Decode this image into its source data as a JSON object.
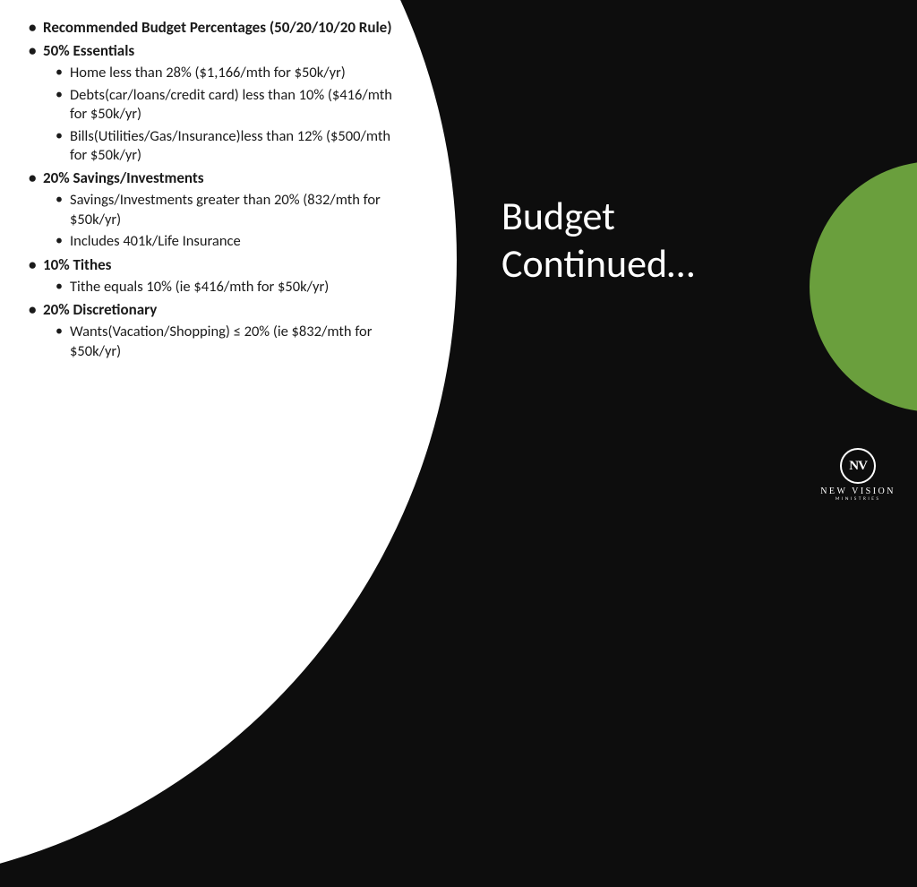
{
  "colors": {
    "background": "#0d0d0d",
    "arc": "#ffffff",
    "circle": "#6a9f3d",
    "body_text": "#1a1a1a",
    "title_text": "#ffffff"
  },
  "title": {
    "line1": "Budget",
    "line2": "Continued…"
  },
  "bullets": [
    {
      "text": "Recommended Budget Percentages (50/20/10/20 Rule)",
      "children": []
    },
    {
      "text": "50% Essentials",
      "children": [
        "Home less than 28% ($1,166/mth for $50k/yr)",
        "Debts(car/loans/credit card) less than 10% ($416/mth for $50k/yr)",
        "Bills(Utilities/Gas/Insurance)less than 12% ($500/mth for $50k/yr)"
      ]
    },
    {
      "text": "20% Savings/Investments",
      "children": [
        "Savings/Investments greater than 20% (832/mth for $50k/yr)",
        "Includes 401k/Life Insurance"
      ]
    },
    {
      "text": "10% Tithes",
      "children": [
        "Tithe equals 10% (ie $416/mth for $50k/yr)"
      ]
    },
    {
      "text": "20% Discretionary",
      "children": [
        "Wants(Vacation/Shopping) ≤  20% (ie $832/mth for $50k/yr)"
      ]
    }
  ],
  "logo": {
    "badge": "NV",
    "name": "NEW VISION",
    "sub": "MINISTRIES"
  }
}
